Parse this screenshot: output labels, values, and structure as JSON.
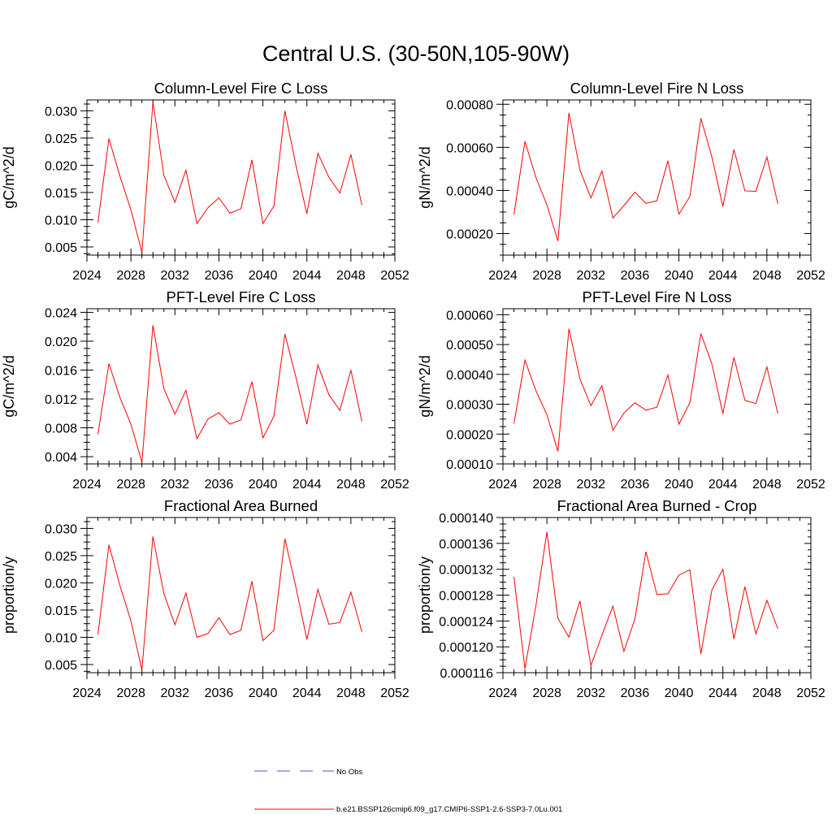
{
  "main_title": "Central U.S. (30-50N,105-90W)",
  "legend": {
    "entries": [
      {
        "label": "No Obs",
        "color": "#4a5aa8",
        "style": "dashed"
      },
      {
        "label": "b.e21.BSSP126cmip6.f09_g17.CMIP6-SSP1-2.6-SSP3-7.0Lu.001",
        "color": "#ff0000",
        "style": "solid"
      }
    ]
  },
  "chart_data": [
    {
      "type": "line",
      "title": "Column-Level Fire C Loss",
      "xlabel": "",
      "ylabel": "gC/m^2/d",
      "xlim": [
        2024,
        2052
      ],
      "ylim": [
        0.0035,
        0.032
      ],
      "xticks": [
        2024,
        2028,
        2032,
        2036,
        2040,
        2044,
        2048,
        2052
      ],
      "yticks": [
        0.005,
        0.01,
        0.015,
        0.02,
        0.025,
        0.03
      ],
      "ytick_labels": [
        "0.005",
        "0.010",
        "0.015",
        "0.020",
        "0.025",
        "0.030"
      ],
      "series": [
        {
          "color": "#ff0000",
          "x": [
            2025,
            2026,
            2027,
            2028,
            2029,
            2030,
            2031,
            2032,
            2033,
            2034,
            2035,
            2036,
            2037,
            2038,
            2039,
            2040,
            2041,
            2042,
            2043,
            2044,
            2045,
            2046,
            2047,
            2048,
            2049
          ],
          "values": [
            0.0095,
            0.0249,
            0.018,
            0.0118,
            0.004,
            0.0316,
            0.0181,
            0.0132,
            0.0191,
            0.0093,
            0.0122,
            0.014,
            0.0112,
            0.012,
            0.021,
            0.0093,
            0.0125,
            0.03,
            0.02,
            0.0111,
            0.0222,
            0.0178,
            0.0149,
            0.022,
            0.0127
          ]
        }
      ]
    },
    {
      "type": "line",
      "title": "Column-Level Fire N Loss",
      "xlabel": "",
      "ylabel": "gN/m^2/d",
      "xlim": [
        2024,
        2052
      ],
      "ylim": [
        0.0001,
        0.00082
      ],
      "xticks": [
        2024,
        2028,
        2032,
        2036,
        2040,
        2044,
        2048,
        2052
      ],
      "yticks": [
        0.0002,
        0.0004,
        0.0006,
        0.0008
      ],
      "ytick_labels": [
        "0.00020",
        "0.00040",
        "0.00060",
        "0.00080"
      ],
      "series": [
        {
          "color": "#ff0000",
          "x": [
            2025,
            2026,
            2027,
            2028,
            2029,
            2030,
            2031,
            2032,
            2033,
            2034,
            2035,
            2036,
            2037,
            2038,
            2039,
            2040,
            2041,
            2042,
            2043,
            2044,
            2045,
            2046,
            2047,
            2048,
            2049
          ],
          "values": [
            0.000288,
            0.000628,
            0.00046,
            0.000333,
            0.000165,
            0.00076,
            0.000495,
            0.000365,
            0.00049,
            0.000272,
            0.00033,
            0.000392,
            0.00034,
            0.000352,
            0.000538,
            0.00029,
            0.000372,
            0.000735,
            0.000555,
            0.000325,
            0.00059,
            0.000398,
            0.000396,
            0.000555,
            0.000338
          ]
        }
      ]
    },
    {
      "type": "line",
      "title": "PFT-Level Fire C Loss",
      "xlabel": "",
      "ylabel": "gC/m^2/d",
      "xlim": [
        2024,
        2052
      ],
      "ylim": [
        0.003,
        0.0245
      ],
      "xticks": [
        2024,
        2028,
        2032,
        2036,
        2040,
        2044,
        2048,
        2052
      ],
      "yticks": [
        0.004,
        0.008,
        0.012,
        0.016,
        0.02,
        0.024
      ],
      "ytick_labels": [
        "0.004",
        "0.008",
        "0.012",
        "0.016",
        "0.020",
        "0.024"
      ],
      "series": [
        {
          "color": "#ff0000",
          "x": [
            2025,
            2026,
            2027,
            2028,
            2029,
            2030,
            2031,
            2032,
            2033,
            2034,
            2035,
            2036,
            2037,
            2038,
            2039,
            2040,
            2041,
            2042,
            2043,
            2044,
            2045,
            2046,
            2047,
            2048,
            2049
          ],
          "values": [
            0.0071,
            0.0169,
            0.0122,
            0.0085,
            0.0032,
            0.0222,
            0.0134,
            0.0099,
            0.0132,
            0.0065,
            0.0092,
            0.0101,
            0.0085,
            0.0091,
            0.0144,
            0.0066,
            0.0096,
            0.021,
            0.015,
            0.0085,
            0.0167,
            0.0126,
            0.0104,
            0.016,
            0.0089
          ]
        }
      ]
    },
    {
      "type": "line",
      "title": "PFT-Level Fire N Loss",
      "xlabel": "",
      "ylabel": "gN/m^2/d",
      "xlim": [
        2024,
        2052
      ],
      "ylim": [
        0.0001,
        0.00062
      ],
      "xticks": [
        2024,
        2028,
        2032,
        2036,
        2040,
        2044,
        2048,
        2052
      ],
      "yticks": [
        0.0001,
        0.0002,
        0.0003,
        0.0004,
        0.0005,
        0.0006
      ],
      "ytick_labels": [
        "0.00010",
        "0.00020",
        "0.00030",
        "0.00040",
        "0.00050",
        "0.00060"
      ],
      "series": [
        {
          "color": "#ff0000",
          "x": [
            2025,
            2026,
            2027,
            2028,
            2029,
            2030,
            2031,
            2032,
            2033,
            2034,
            2035,
            2036,
            2037,
            2038,
            2039,
            2040,
            2041,
            2042,
            2043,
            2044,
            2045,
            2046,
            2047,
            2048,
            2049
          ],
          "values": [
            0.000235,
            0.000448,
            0.000345,
            0.000265,
            0.000142,
            0.000553,
            0.000385,
            0.000295,
            0.000362,
            0.000213,
            0.00027,
            0.000305,
            0.00028,
            0.00029,
            0.000398,
            0.000233,
            0.000305,
            0.000537,
            0.000435,
            0.000268,
            0.000457,
            0.000313,
            0.000302,
            0.000425,
            0.000268
          ]
        }
      ]
    },
    {
      "type": "line",
      "title": "Fractional Area Burned",
      "xlabel": "",
      "ylabel": "proportion/y",
      "xlim": [
        2024,
        2052
      ],
      "ylim": [
        0.0035,
        0.032
      ],
      "xticks": [
        2024,
        2028,
        2032,
        2036,
        2040,
        2044,
        2048,
        2052
      ],
      "yticks": [
        0.005,
        0.01,
        0.015,
        0.02,
        0.025,
        0.03
      ],
      "ytick_labels": [
        "0.005",
        "0.010",
        "0.015",
        "0.020",
        "0.025",
        "0.030"
      ],
      "series": [
        {
          "color": "#ff0000",
          "x": [
            2025,
            2026,
            2027,
            2028,
            2029,
            2030,
            2031,
            2032,
            2033,
            2034,
            2035,
            2036,
            2037,
            2038,
            2039,
            2040,
            2041,
            2042,
            2043,
            2044,
            2045,
            2046,
            2047,
            2048,
            2049
          ],
          "values": [
            0.0105,
            0.027,
            0.0195,
            0.013,
            0.004,
            0.0285,
            0.018,
            0.0123,
            0.0181,
            0.01,
            0.0107,
            0.0136,
            0.0105,
            0.0113,
            0.0203,
            0.0094,
            0.0113,
            0.0281,
            0.0192,
            0.0096,
            0.0188,
            0.0124,
            0.0127,
            0.0183,
            0.011
          ]
        }
      ]
    },
    {
      "type": "line",
      "title": "Fractional Area Burned - Crop",
      "xlabel": "",
      "ylabel": "proportion/y",
      "xlim": [
        2024,
        2052
      ],
      "ylim": [
        0.000116,
        0.00014
      ],
      "xticks": [
        2024,
        2028,
        2032,
        2036,
        2040,
        2044,
        2048,
        2052
      ],
      "yticks": [
        0.000116,
        0.00012,
        0.000124,
        0.000128,
        0.000132,
        0.000136,
        0.00014
      ],
      "ytick_labels": [
        "0.000116",
        "0.000120",
        "0.000124",
        "0.000128",
        "0.000132",
        "0.000136",
        "0.000140"
      ],
      "series": [
        {
          "color": "#ff0000",
          "x": [
            2025,
            2026,
            2027,
            2028,
            2029,
            2030,
            2031,
            2032,
            2033,
            2034,
            2035,
            2036,
            2037,
            2038,
            2039,
            2040,
            2041,
            2042,
            2043,
            2044,
            2045,
            2046,
            2047,
            2048,
            2049
          ],
          "values": [
            0.0001308,
            0.0001166,
            0.0001264,
            0.0001378,
            0.0001244,
            0.0001215,
            0.0001271,
            0.0001171,
            0.0001218,
            0.0001263,
            0.0001193,
            0.0001243,
            0.0001347,
            0.0001281,
            0.0001282,
            0.0001311,
            0.0001319,
            0.0001189,
            0.0001288,
            0.000132,
            0.0001212,
            0.0001293,
            0.000122,
            0.0001272,
            0.0001228
          ]
        }
      ]
    }
  ]
}
